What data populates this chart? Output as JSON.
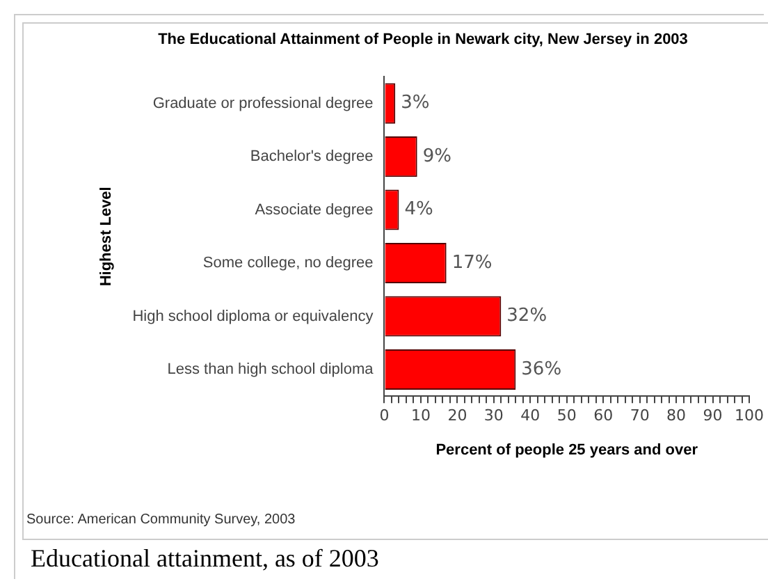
{
  "chart_data": {
    "type": "bar",
    "orientation": "horizontal",
    "title": "The Educational Attainment of People in Newark city, New Jersey in 2003",
    "xlabel": "Percent of people 25 years and over",
    "ylabel": "Highest Level",
    "categories": [
      "Graduate or professional degree",
      "Bachelor's degree",
      "Associate degree",
      "Some college, no degree",
      "High school diploma or equivalency",
      "Less than high school diploma"
    ],
    "values": [
      3,
      9,
      4,
      17,
      32,
      36
    ],
    "value_labels": [
      "3%",
      "9%",
      "4%",
      "17%",
      "32%",
      "36%"
    ],
    "color": "#ff0000",
    "xlim": [
      0,
      100
    ],
    "xticks": [
      0,
      {
        "value": 2,
        "label": null
      },
      {
        "value": 4,
        "label": null
      },
      {
        "value": 6,
        "label": null
      },
      {
        "value": 8,
        "label": null
      },
      10,
      {
        "value": 12,
        "label": null
      },
      {
        "value": 14,
        "label": null
      },
      {
        "value": 16,
        "label": null
      },
      {
        "value": 18,
        "label": null
      },
      20,
      {
        "value": 22,
        "label": null
      },
      {
        "value": 24,
        "label": null
      },
      {
        "value": 26,
        "label": null
      },
      {
        "value": 28,
        "label": null
      },
      30,
      {
        "value": 32,
        "label": null
      },
      {
        "value": 34,
        "label": null
      },
      {
        "value": 36,
        "label": null
      },
      {
        "value": 38,
        "label": null
      },
      40,
      {
        "value": 42,
        "label": null
      },
      {
        "value": 44,
        "label": null
      },
      {
        "value": 46,
        "label": null
      },
      {
        "value": 48,
        "label": null
      },
      50,
      {
        "value": 52,
        "label": null
      },
      {
        "value": 54,
        "label": null
      },
      {
        "value": 56,
        "label": null
      },
      {
        "value": 58,
        "label": null
      },
      60,
      {
        "value": 62,
        "label": null
      },
      {
        "value": 64,
        "label": null
      },
      {
        "value": 66,
        "label": null
      },
      {
        "value": 68,
        "label": null
      },
      70,
      {
        "value": 72,
        "label": null
      },
      {
        "value": 74,
        "label": null
      },
      {
        "value": 76,
        "label": null
      },
      {
        "value": 78,
        "label": null
      },
      80,
      {
        "value": 82,
        "label": null
      },
      {
        "value": 84,
        "label": null
      },
      {
        "value": 86,
        "label": null
      },
      {
        "value": 88,
        "label": null
      },
      90,
      {
        "value": 92,
        "label": null
      },
      {
        "value": 94,
        "label": null
      },
      {
        "value": 96,
        "label": null
      },
      {
        "value": 98,
        "label": null
      },
      100
    ],
    "grid": false,
    "legend": false,
    "annotations": [
      "Source: American Community Survey, 2003",
      "Educational attainment, as of 2003"
    ]
  }
}
